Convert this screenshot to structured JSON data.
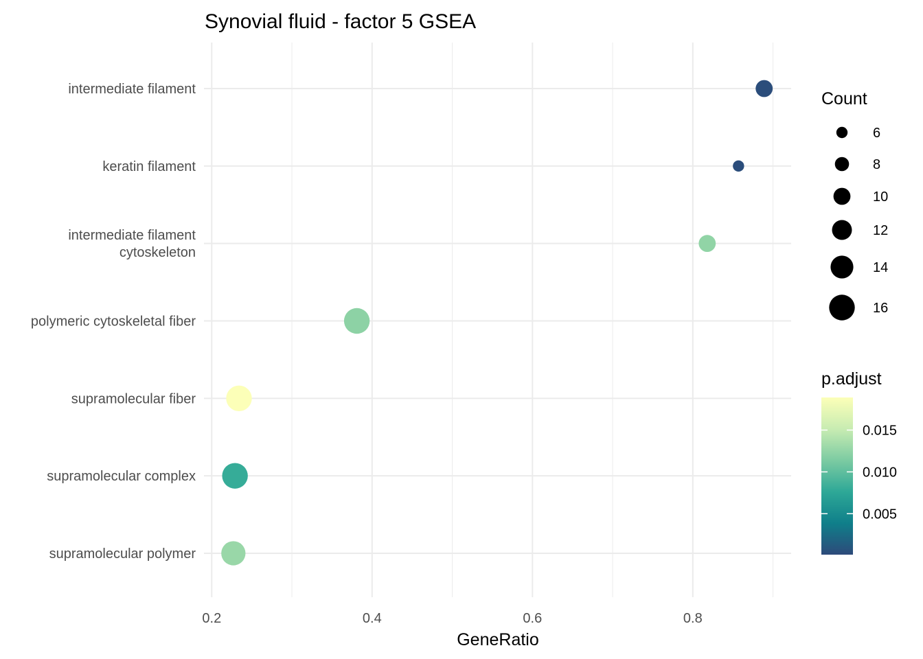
{
  "chart_data": {
    "type": "scatter",
    "title": "Synovial fluid - factor 5 GSEA",
    "xlabel": "GeneRatio",
    "ylabel": "",
    "xlim": [
      0.17,
      0.92
    ],
    "xticks": [
      0.2,
      0.4,
      0.6,
      0.8
    ],
    "xtick_labels": [
      "0.2",
      "0.4",
      "0.6",
      "0.8"
    ],
    "categories": [
      [
        "intermediate filament"
      ],
      [
        "keratin filament"
      ],
      [
        "intermediate filament",
        "cytoskeleton"
      ],
      [
        "polymeric cytoskeletal fiber"
      ],
      [
        "supramolecular fiber"
      ],
      [
        "supramolecular complex"
      ],
      [
        "supramolecular polymer"
      ]
    ],
    "points": [
      {
        "gene_ratio": 0.889,
        "count": 10,
        "p_adjust": 0.0003
      },
      {
        "gene_ratio": 0.857,
        "count": 6,
        "p_adjust": 0.0003
      },
      {
        "gene_ratio": 0.818,
        "count": 10,
        "p_adjust": 0.0124
      },
      {
        "gene_ratio": 0.381,
        "count": 16,
        "p_adjust": 0.0122
      },
      {
        "gene_ratio": 0.234,
        "count": 16,
        "p_adjust": 0.0189
      },
      {
        "gene_ratio": 0.229,
        "count": 16,
        "p_adjust": 0.008
      },
      {
        "gene_ratio": 0.227,
        "count": 15,
        "p_adjust": 0.0128
      }
    ],
    "legend_size": {
      "title": "Count",
      "values": [
        6,
        8,
        10,
        12,
        14,
        16
      ],
      "labels": [
        "6",
        "8",
        "10",
        "12",
        "14",
        "16"
      ]
    },
    "legend_color": {
      "title": "p.adjust",
      "range": [
        0.0001,
        0.0189
      ],
      "ticks": [
        0.005,
        0.01,
        0.015
      ],
      "tick_labels": [
        "0.005",
        "0.010",
        "0.015"
      ],
      "colormap": [
        "#2d4a7a",
        "#0f7f8a",
        "#2ea897",
        "#7ccba2",
        "#c8ecb2",
        "#fcffb8"
      ]
    },
    "grid": true,
    "legend_position": "right"
  }
}
